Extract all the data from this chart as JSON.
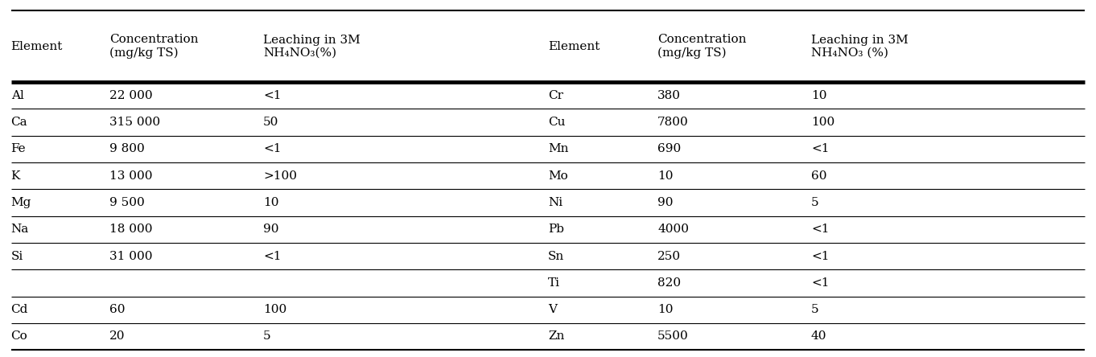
{
  "col_headers_left": [
    "Element",
    "Concentration\n(mg/kg TS)",
    "Leaching in 3M\nNH₄NO₃(%)"
  ],
  "col_headers_right": [
    "Element",
    "Concentration\n(mg/kg TS)",
    "Leaching in 3M\nNH₄NO₃ (%)"
  ],
  "rows_left": [
    [
      "Al",
      "22 000",
      "<1"
    ],
    [
      "Ca",
      "315 000",
      "50"
    ],
    [
      "Fe",
      "9 800",
      "<1"
    ],
    [
      "K",
      "13 000",
      ">100"
    ],
    [
      "Mg",
      "9 500",
      "10"
    ],
    [
      "Na",
      "18 000",
      "90"
    ],
    [
      "Si",
      "31 000",
      "<1"
    ],
    [
      "",
      "",
      ""
    ],
    [
      "Cd",
      "60",
      "100"
    ],
    [
      "Co",
      "20",
      "5"
    ]
  ],
  "rows_right": [
    [
      "Cr",
      "380",
      "10"
    ],
    [
      "Cu",
      "7800",
      "100"
    ],
    [
      "Mn",
      "690",
      "<1"
    ],
    [
      "Mo",
      "10",
      "60"
    ],
    [
      "Ni",
      "90",
      "5"
    ],
    [
      "Pb",
      "4000",
      "<1"
    ],
    [
      "Sn",
      "250",
      "<1"
    ],
    [
      "Ti",
      "820",
      "<1"
    ],
    [
      "V",
      "10",
      "5"
    ],
    [
      "Zn",
      "5500",
      "40"
    ]
  ],
  "bg_color": "#ffffff",
  "text_color": "#000000",
  "figsize": [
    13.62,
    4.44
  ],
  "dpi": 100,
  "font_size": 11.0,
  "header_font_size": 11.0
}
